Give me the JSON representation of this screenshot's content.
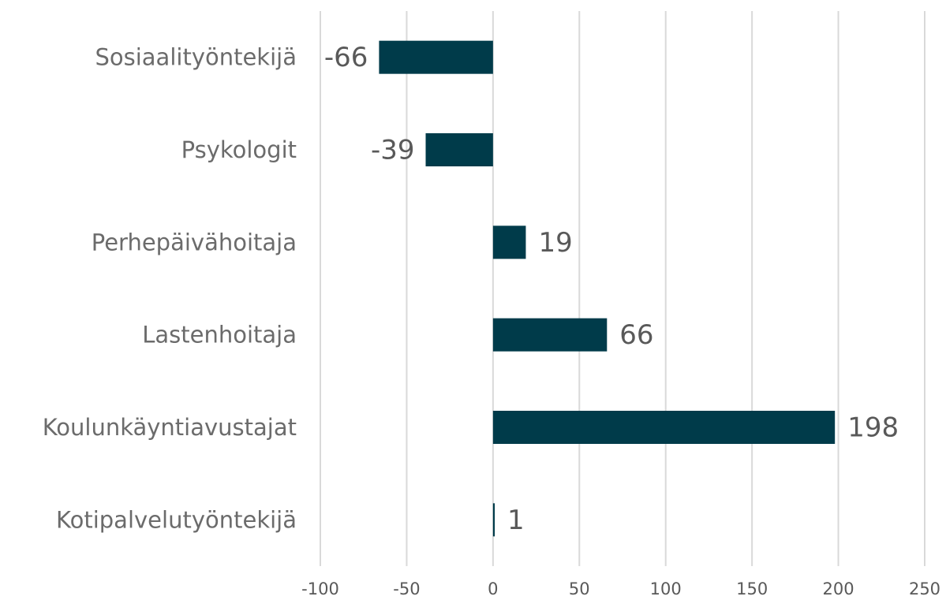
{
  "chart_data": {
    "type": "bar",
    "orientation": "horizontal",
    "categories": [
      "Sosiaalityöntekijä",
      "Psykologit",
      "Perhepäivähoitaja",
      "Lastenhoitaja",
      "Koulunkäyntiavustajat",
      "Kotipalvelutyöntekijä"
    ],
    "values": [
      -66,
      -39,
      19,
      66,
      198,
      1
    ],
    "color": "#003b4a",
    "xlim": [
      -100,
      250
    ],
    "xticks": [
      -100,
      -50,
      0,
      50,
      100,
      150,
      200,
      250
    ],
    "grid": true
  }
}
